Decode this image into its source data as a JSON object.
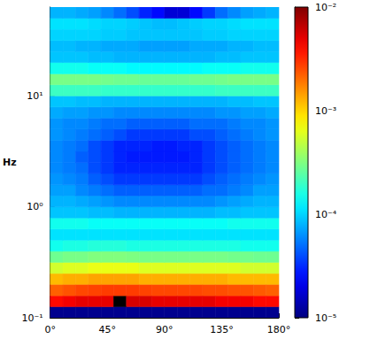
{
  "chart_data": {
    "type": "heatmap",
    "log": "y",
    "ylabel": "Hz",
    "xlim": [
      0,
      180
    ],
    "xticks": [
      {
        "value": 0,
        "label": "0°"
      },
      {
        "value": 45,
        "label": "45°"
      },
      {
        "value": 90,
        "label": "90°"
      },
      {
        "value": 135,
        "label": "135°"
      },
      {
        "value": 180,
        "label": "180°"
      }
    ],
    "ylim": [
      0.1,
      63.1
    ],
    "yticks": [
      {
        "value": 0.1,
        "label": "10⁻¹"
      },
      {
        "value": 1,
        "label": "10⁰"
      },
      {
        "value": 10,
        "label": "10¹"
      }
    ],
    "x_edges": [
      0,
      10,
      20,
      30,
      40,
      50,
      60,
      70,
      80,
      90,
      100,
      110,
      120,
      130,
      140,
      150,
      160,
      170,
      180
    ],
    "y_edges": [
      0.1,
      0.126,
      0.158,
      0.2,
      0.251,
      0.316,
      0.398,
      0.501,
      0.631,
      0.794,
      1,
      1.26,
      1.58,
      2,
      2.51,
      3.16,
      3.98,
      5.01,
      6.31,
      7.94,
      10,
      12.6,
      15.8,
      20,
      25.1,
      31.6,
      39.8,
      50.1,
      63.1
    ],
    "cells": [
      [
        1.1e-05,
        1.1e-05,
        1.1e-05,
        1.1e-05,
        1.1e-05,
        1.1e-05,
        1.1e-05,
        1.1e-05,
        1.1e-05,
        1.1e-05,
        1.1e-05,
        1.1e-05,
        1.1e-05,
        1.1e-05,
        1.1e-05,
        1.1e-05,
        1.1e-05,
        1.1e-05
      ],
      [
        0.004,
        0.0045,
        0.005,
        0.005,
        0.005,
        0.02,
        0.0055,
        0.0055,
        0.005,
        0.005,
        0.005,
        0.005,
        0.005,
        0.0045,
        0.0045,
        0.0045,
        0.004,
        0.004
      ],
      [
        0.0022,
        0.0024,
        0.0026,
        0.0027,
        0.0028,
        0.0028,
        0.0028,
        0.0027,
        0.0026,
        0.0026,
        0.0026,
        0.0026,
        0.0025,
        0.0025,
        0.0024,
        0.0024,
        0.0023,
        0.0022
      ],
      [
        0.0012,
        0.0013,
        0.0013,
        0.0014,
        0.0014,
        0.0014,
        0.0014,
        0.0013,
        0.0013,
        0.0013,
        0.0013,
        0.0013,
        0.0013,
        0.0013,
        0.0012,
        0.0012,
        0.0012,
        0.0012
      ],
      [
        0.00055,
        0.0006,
        0.0006,
        0.00065,
        0.00065,
        0.00065,
        0.00065,
        0.0006,
        0.0006,
        0.0006,
        0.0006,
        0.0006,
        0.0006,
        0.0006,
        0.0006,
        0.00055,
        0.00055,
        0.00055
      ],
      [
        0.00028,
        0.0003,
        0.0003,
        0.00032,
        0.00032,
        0.00032,
        0.00031,
        0.0003,
        0.0003,
        0.0003,
        0.0003,
        0.0003,
        0.0003,
        0.0003,
        0.00029,
        0.00029,
        0.00028,
        0.00028
      ],
      [
        0.00015,
        0.00016,
        0.00016,
        0.00017,
        0.00017,
        0.00017,
        0.00016,
        0.00016,
        0.00016,
        0.00016,
        0.00016,
        0.00016,
        0.00016,
        0.00016,
        0.00016,
        0.00015,
        0.00015,
        0.00015
      ],
      [
        0.00011,
        0.00011,
        0.00011,
        0.00011,
        0.00011,
        0.00011,
        0.00011,
        0.00011,
        0.00011,
        0.00011,
        0.00011,
        0.00011,
        0.00011,
        0.00011,
        0.00011,
        0.00011,
        0.00011,
        0.00011
      ],
      [
        0.00015,
        0.00015,
        0.00015,
        0.00014,
        0.00014,
        0.00014,
        0.00014,
        0.00014,
        0.00014,
        0.00014,
        0.00014,
        0.00014,
        0.00014,
        0.00014,
        0.00015,
        0.00015,
        0.00015,
        0.00015
      ],
      [
        9e-05,
        9e-05,
        9e-05,
        8.5e-05,
        8.5e-05,
        8e-05,
        8e-05,
        8e-05,
        8e-05,
        8e-05,
        8e-05,
        8e-05,
        8e-05,
        8.5e-05,
        8.5e-05,
        9e-05,
        9e-05,
        9e-05
      ],
      [
        8e-05,
        8e-05,
        7.5e-05,
        7e-05,
        6.5e-05,
        6e-05,
        6e-05,
        6e-05,
        6e-05,
        6e-05,
        6e-05,
        6e-05,
        6e-05,
        6.5e-05,
        7e-05,
        7.5e-05,
        8e-05,
        8e-05
      ],
      [
        7e-05,
        7e-05,
        6e-05,
        5.5e-05,
        5e-05,
        4.5e-05,
        4.5e-05,
        4.5e-05,
        4.5e-05,
        4.5e-05,
        4.5e-05,
        4.5e-05,
        5e-05,
        5e-05,
        5.5e-05,
        6e-05,
        7e-05,
        7e-05
      ],
      [
        6.5e-05,
        6e-05,
        5.5e-05,
        4.5e-05,
        4e-05,
        3.5e-05,
        3.5e-05,
        3.5e-05,
        3.5e-05,
        3.5e-05,
        3.5e-05,
        3.5e-05,
        4e-05,
        4.5e-05,
        5e-05,
        5.5e-05,
        6e-05,
        6.5e-05
      ],
      [
        6e-05,
        5.5e-05,
        5e-05,
        4e-05,
        3.5e-05,
        3e-05,
        3e-05,
        3e-05,
        3e-05,
        3e-05,
        3e-05,
        3e-05,
        3.5e-05,
        4e-05,
        4.5e-05,
        5e-05,
        5.5e-05,
        6e-05
      ],
      [
        6e-05,
        5.5e-05,
        4.5e-05,
        4e-05,
        3.5e-05,
        3e-05,
        2.8e-05,
        2.8e-05,
        2.8e-05,
        2.8e-05,
        2.8e-05,
        3e-05,
        3.5e-05,
        4e-05,
        4.5e-05,
        5e-05,
        5.5e-05,
        6e-05
      ],
      [
        6e-05,
        5.5e-05,
        5e-05,
        4e-05,
        3.5e-05,
        3e-05,
        3e-05,
        3e-05,
        2.8e-05,
        2.8e-05,
        3e-05,
        3e-05,
        3.5e-05,
        4e-05,
        4.5e-05,
        5e-05,
        5.5e-05,
        6e-05
      ],
      [
        6.5e-05,
        6e-05,
        5.5e-05,
        5e-05,
        4.5e-05,
        4e-05,
        3.5e-05,
        3.5e-05,
        3.5e-05,
        3.5e-05,
        3.5e-05,
        4e-05,
        4e-05,
        4.5e-05,
        5e-05,
        5.5e-05,
        6e-05,
        6.5e-05
      ],
      [
        6.5e-05,
        6e-05,
        6e-05,
        5.5e-05,
        5e-05,
        5e-05,
        4.5e-05,
        4.5e-05,
        4.5e-05,
        4.5e-05,
        4.5e-05,
        5e-05,
        5e-05,
        5e-05,
        5.5e-05,
        6e-05,
        6e-05,
        6.5e-05
      ],
      [
        7.5e-05,
        7e-05,
        7e-05,
        6.5e-05,
        6.5e-05,
        6e-05,
        6e-05,
        6e-05,
        6e-05,
        6e-05,
        6e-05,
        6e-05,
        6e-05,
        6.5e-05,
        6.5e-05,
        7e-05,
        7e-05,
        7.5e-05
      ],
      [
        9e-05,
        9e-05,
        8.5e-05,
        8.5e-05,
        8e-05,
        8e-05,
        8e-05,
        8e-05,
        8e-05,
        8e-05,
        8e-05,
        8e-05,
        8e-05,
        8e-05,
        8.5e-05,
        8.5e-05,
        9e-05,
        9e-05
      ],
      [
        0.0002,
        0.0002,
        0.0002,
        0.0002,
        0.00019,
        0.00019,
        0.00019,
        0.00019,
        0.00019,
        0.00019,
        0.00019,
        0.00019,
        0.00019,
        0.0002,
        0.0002,
        0.0002,
        0.0002,
        0.0002
      ],
      [
        0.0003,
        0.0003,
        0.0003,
        0.0003,
        0.00029,
        0.00028,
        0.00028,
        0.00027,
        0.00027,
        0.00027,
        0.00027,
        0.00028,
        0.00028,
        0.00029,
        0.0003,
        0.0003,
        0.0003,
        0.0003
      ],
      [
        0.00015,
        0.00015,
        0.00015,
        0.00014,
        0.00014,
        0.00014,
        0.00013,
        0.00013,
        0.00013,
        0.00013,
        0.00013,
        0.00013,
        0.00014,
        0.00014,
        0.00014,
        0.00015,
        0.00015,
        0.00015
      ],
      [
        9e-05,
        9e-05,
        9e-05,
        8.5e-05,
        8.5e-05,
        8e-05,
        8e-05,
        8e-05,
        8e-05,
        8e-05,
        8e-05,
        8e-05,
        8e-05,
        8.5e-05,
        8.5e-05,
        9e-05,
        9e-05,
        9e-05
      ],
      [
        8.5e-05,
        8.5e-05,
        8e-05,
        8e-05,
        7.5e-05,
        7.5e-05,
        7.5e-05,
        7e-05,
        7e-05,
        7e-05,
        7e-05,
        7.5e-05,
        7.5e-05,
        7.5e-05,
        8e-05,
        8e-05,
        8.5e-05,
        8.5e-05
      ],
      [
        0.0001,
        0.0001,
        0.0001,
        0.0001,
        9.5e-05,
        9.5e-05,
        9e-05,
        9e-05,
        9e-05,
        9e-05,
        9e-05,
        9e-05,
        9.5e-05,
        9.5e-05,
        0.0001,
        0.0001,
        0.0001,
        0.0001
      ],
      [
        0.00011,
        0.00011,
        0.00011,
        0.000105,
        0.0001,
        0.0001,
        9.5e-05,
        9e-05,
        8.5e-05,
        8.5e-05,
        9e-05,
        9.5e-05,
        0.0001,
        0.0001,
        0.000105,
        0.00011,
        0.00011,
        0.00011
      ],
      [
        8e-05,
        8e-05,
        7.5e-05,
        7e-05,
        6e-05,
        5e-05,
        4e-05,
        3e-05,
        2.5e-05,
        1.8e-05,
        1.8e-05,
        2.5e-05,
        3.5e-05,
        5e-05,
        6e-05,
        7e-05,
        7.5e-05,
        8e-05
      ]
    ],
    "colorbar": {
      "range": [
        1e-05,
        0.01
      ],
      "ticks": [
        {
          "value": 1e-05,
          "label": "10⁻⁵"
        },
        {
          "value": 0.0001,
          "label": "10⁻⁴"
        },
        {
          "value": 0.001,
          "label": "10⁻³"
        },
        {
          "value": 0.01,
          "label": "10⁻²"
        }
      ]
    }
  }
}
